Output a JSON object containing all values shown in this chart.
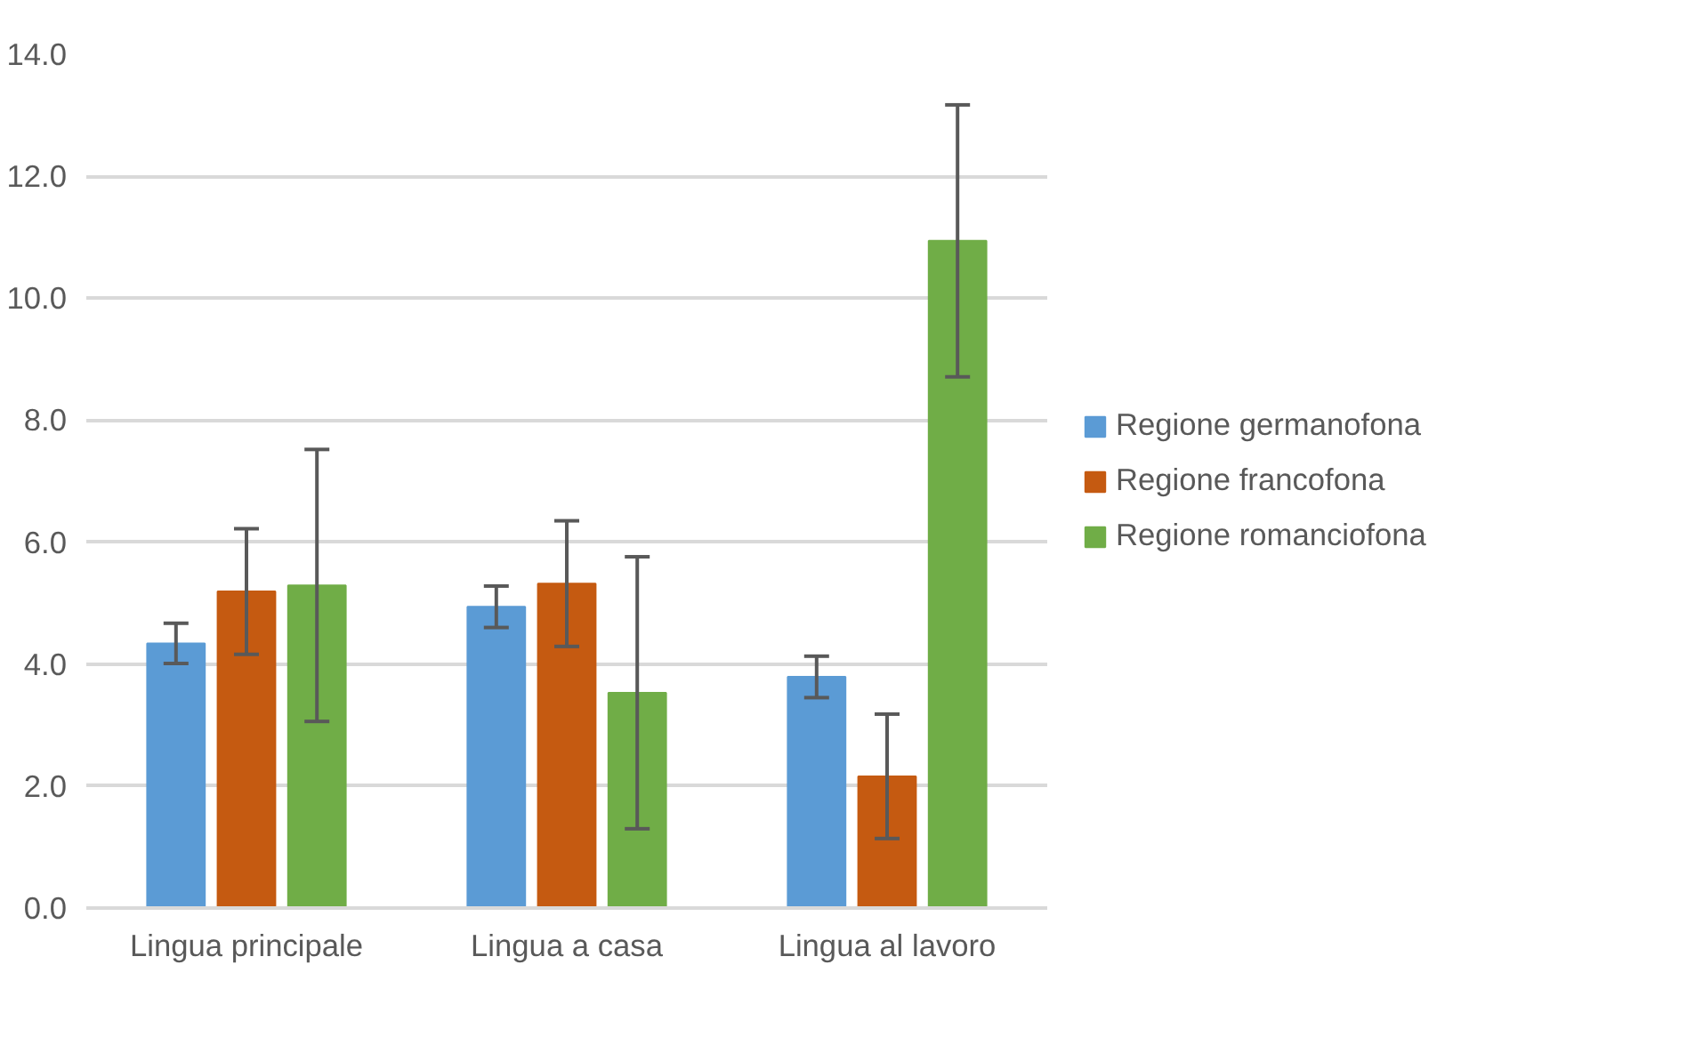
{
  "chart_data": {
    "type": "bar",
    "categories": [
      "Lingua principale",
      "Lingua a casa",
      "Lingua al lavoro"
    ],
    "series": [
      {
        "name": "Regione germanofona",
        "color": "#5b9bd5",
        "values": [
          4.34,
          4.94,
          3.79
        ],
        "errors": [
          0.33,
          0.34,
          0.34
        ]
      },
      {
        "name": "Regione francofona",
        "color": "#c55a11",
        "values": [
          5.19,
          5.32,
          2.16
        ],
        "errors": [
          1.03,
          1.03,
          1.02
        ]
      },
      {
        "name": "Regione romanciofona",
        "color": "#70ad47",
        "values": [
          5.29,
          3.53,
          10.94
        ],
        "errors": [
          2.23,
          2.23,
          2.23
        ]
      }
    ],
    "ylim": [
      0,
      14
    ],
    "yticks": [
      {
        "value": 0,
        "label": "0.0"
      },
      {
        "value": 2,
        "label": "2.0"
      },
      {
        "value": 4,
        "label": "4.0"
      },
      {
        "value": 6,
        "label": "6.0"
      },
      {
        "value": 8,
        "label": "8.0"
      },
      {
        "value": 10,
        "label": "10.0"
      },
      {
        "value": 12,
        "label": "12.0"
      },
      {
        "value": 14,
        "label": "14.0"
      }
    ],
    "grid": "y",
    "legend": "right"
  }
}
